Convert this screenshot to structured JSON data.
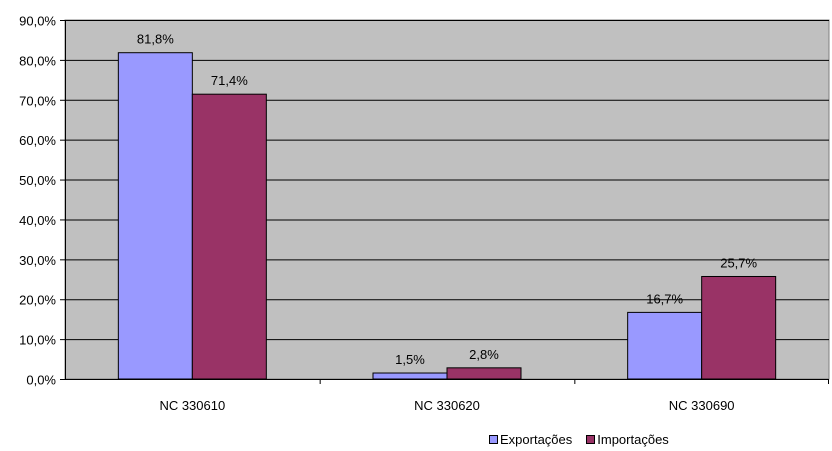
{
  "chart_data": {
    "type": "bar",
    "categories": [
      "NC 330610",
      "NC 330620",
      "NC 330690"
    ],
    "series": [
      {
        "name": "Exportações",
        "values": [
          81.8,
          1.5,
          16.7
        ],
        "labels": [
          "81,8%",
          "1,5%",
          "16,7%"
        ],
        "color": "#9999ff"
      },
      {
        "name": "Importações",
        "values": [
          71.4,
          2.8,
          25.7
        ],
        "labels": [
          "71,4%",
          "2,8%",
          "25,7%"
        ],
        "color": "#993366"
      }
    ],
    "y_ticks": [
      0,
      10,
      20,
      30,
      40,
      50,
      60,
      70,
      80,
      90
    ],
    "y_tick_labels": [
      "0,0%",
      "10,0%",
      "20,0%",
      "30,0%",
      "40,0%",
      "50,0%",
      "60,0%",
      "70,0%",
      "80,0%",
      "90,0%"
    ],
    "ylim": [
      0,
      90
    ],
    "grid": true,
    "plot_background": "#c0c0c0",
    "legend_position": "bottom-right"
  }
}
